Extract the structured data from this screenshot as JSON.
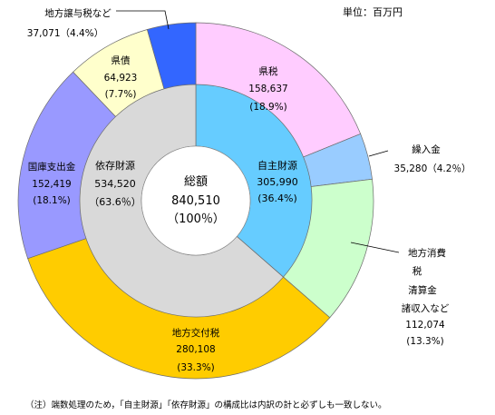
{
  "unit_label": "単位：百万円",
  "note": "（注）端数処理のため，「自主財源」「依存財源」の構成比は内訳の計と必ずしも一致しない。",
  "center": {
    "label": "総額",
    "value": "840,510",
    "pct": "（100％）"
  },
  "chart_data": [
    {
      "type": "pie",
      "ring": "inner",
      "total": 840510,
      "slices": [
        {
          "label": "自主財源",
          "value": 305990,
          "value_text": "305,990",
          "percent": 36.4,
          "percent_text": "(36.4%)",
          "color": "#66ccff"
        },
        {
          "label": "依存財源",
          "value": 534520,
          "value_text": "534,520",
          "percent": 63.6,
          "percent_text": "（63.6％）",
          "color": "#d9d9d9"
        }
      ]
    },
    {
      "type": "pie",
      "ring": "outer",
      "total": 840510,
      "slices": [
        {
          "label": "県税",
          "value": 158637,
          "value_text": "158,637",
          "percent": 18.9,
          "percent_text": "(18.9%)",
          "color": "#ffccff"
        },
        {
          "label": "繰入金",
          "value": 35280,
          "value_text": "35,280（4.2％）",
          "percent": 4.2,
          "percent_text": "",
          "color": "#99ccff"
        },
        {
          "label": "地方消費税清算金諸収入など",
          "value": 112074,
          "value_text": "112,074",
          "percent": 13.3,
          "percent_text": "(13.3%)",
          "color": "#ccffcc"
        },
        {
          "label": "地方交付税",
          "value": 280108,
          "value_text": "280,108",
          "percent": 33.3,
          "percent_text": "(33.3%)",
          "color": "#ffcc00"
        },
        {
          "label": "国庫支出金",
          "value": 152419,
          "value_text": "152,419",
          "percent": 18.1,
          "percent_text": "(18.1%)",
          "color": "#9999ff"
        },
        {
          "label": "県債",
          "value": 64923,
          "value_text": "64,923",
          "percent": 7.7,
          "percent_text": "(7.7%)",
          "color": "#ffffcc"
        },
        {
          "label": "地方譲与税など",
          "value": 37071,
          "value_text": "37,071（4.4%）",
          "percent": 4.4,
          "percent_text": "",
          "color": "#3366ff"
        }
      ]
    }
  ]
}
